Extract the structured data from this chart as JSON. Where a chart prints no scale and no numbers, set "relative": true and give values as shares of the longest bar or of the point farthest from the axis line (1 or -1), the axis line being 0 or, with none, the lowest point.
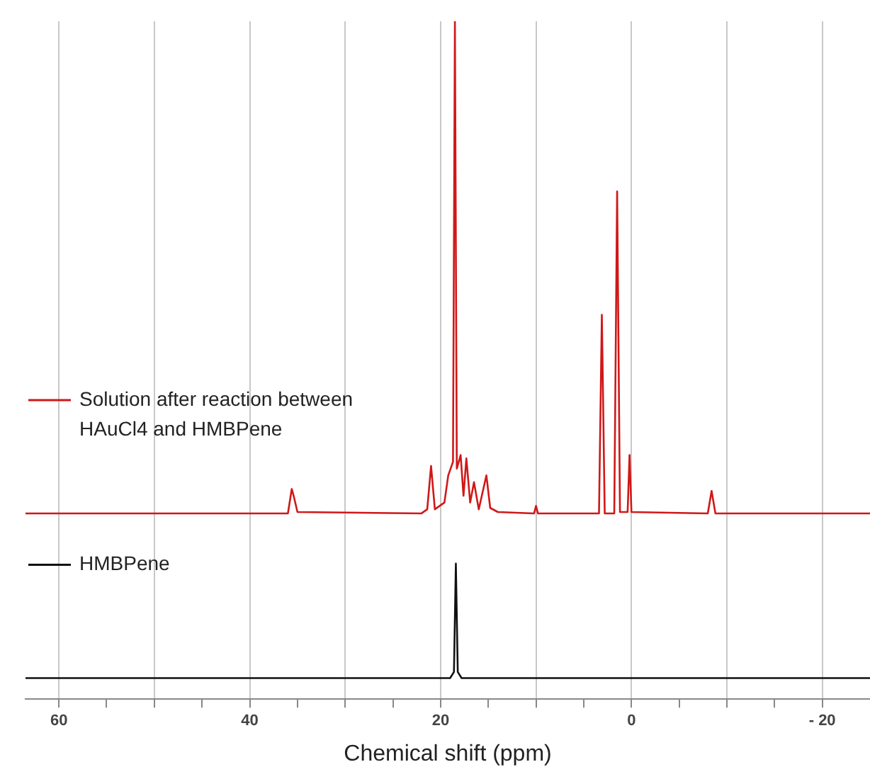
{
  "chart_data": {
    "type": "line",
    "xlabel": "Chemical shift (ppm)",
    "relative": true,
    "xlim": [
      63.5,
      -25
    ],
    "xticks": [
      60,
      {
        "value": 55,
        "label": null
      },
      {
        "value": 50,
        "label": null
      },
      {
        "value": 45,
        "label": null
      },
      40,
      {
        "value": 35,
        "label": null
      },
      {
        "value": 30,
        "label": null
      },
      {
        "value": 25,
        "label": null
      },
      20,
      {
        "value": 15,
        "label": null
      },
      {
        "value": 10,
        "label": null
      },
      {
        "value": 5,
        "label": null
      },
      0,
      {
        "value": -5,
        "label": null
      },
      {
        "value": -10,
        "label": null
      },
      {
        "value": -15,
        "label": null
      },
      {
        "value": -20,
        "label": "- 20"
      }
    ],
    "grid": "x",
    "legend": "left",
    "marker": "none",
    "line_style": "solid",
    "series": [
      {
        "name": "Solution after reaction between HAuCl4 and HMBPene",
        "color": "#d01818",
        "x": [
          63.5,
          36.0,
          35.6,
          35.4,
          35.0,
          22.0,
          21.4,
          21.0,
          20.6,
          19.6,
          19.2,
          18.7,
          18.5,
          18.3,
          17.9,
          17.6,
          17.3,
          16.9,
          16.5,
          16.0,
          15.2,
          14.8,
          14.0,
          10.2,
          10.0,
          9.8,
          3.4,
          3.1,
          2.8,
          1.8,
          1.5,
          1.2,
          0.4,
          0.2,
          0.0,
          -8.0,
          -8.4,
          -8.8,
          -25
        ],
        "values": [
          0.274,
          0.274,
          0.31,
          0.3,
          0.276,
          0.274,
          0.28,
          0.344,
          0.28,
          0.29,
          0.33,
          0.35,
          1.0,
          0.34,
          0.36,
          0.3,
          0.355,
          0.29,
          0.32,
          0.28,
          0.33,
          0.282,
          0.276,
          0.274,
          0.285,
          0.274,
          0.274,
          0.567,
          0.274,
          0.274,
          0.749,
          0.276,
          0.276,
          0.36,
          0.276,
          0.274,
          0.307,
          0.274,
          0.274
        ]
      },
      {
        "name": "HMBPene",
        "color": "#111111",
        "x": [
          63.5,
          19.0,
          18.6,
          18.4,
          18.2,
          17.8,
          -25
        ],
        "values": [
          0.031,
          0.031,
          0.04,
          0.2,
          0.04,
          0.031,
          0.031
        ]
      }
    ]
  }
}
